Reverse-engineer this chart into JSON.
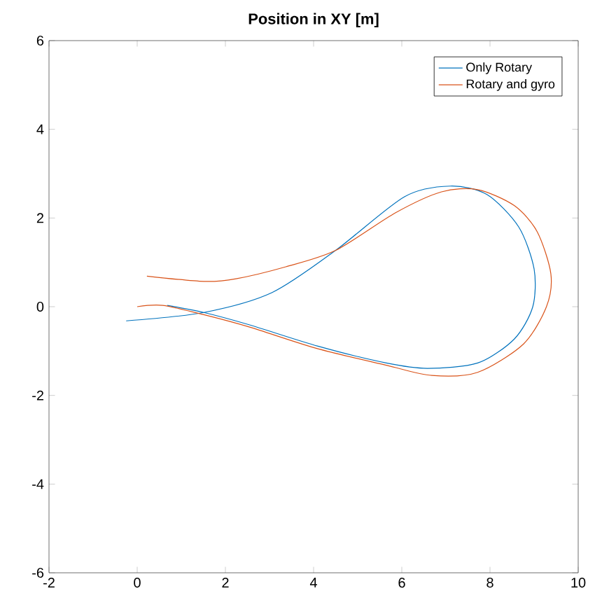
{
  "chart_data": {
    "type": "line",
    "title": "Position in XY [m]",
    "xlim": [
      -2,
      10
    ],
    "ylim": [
      -6,
      6
    ],
    "xticks": [
      -2,
      0,
      2,
      4,
      6,
      8,
      10
    ],
    "yticks": [
      -6,
      -4,
      -2,
      0,
      2,
      4,
      6
    ],
    "grid": false,
    "legend": "top right",
    "marker": "none",
    "line_style": "solid",
    "series": [
      {
        "name": "Only Rotary",
        "color": "#0072bd",
        "x": [
          -0.25,
          1.51,
          3.06,
          4.5,
          6.06,
          7.1,
          7.93,
          8.65,
          9.0,
          8.97,
          8.55,
          7.72,
          6.58,
          5.65,
          4.1,
          2.55,
          1.51,
          0.68
        ],
        "values": [
          -0.32,
          -0.13,
          0.32,
          1.27,
          2.48,
          2.72,
          2.53,
          1.8,
          0.85,
          0.0,
          -0.73,
          -1.27,
          -1.39,
          -1.27,
          -0.89,
          -0.41,
          -0.13,
          0.03
        ]
      },
      {
        "name": "Rotary and gyro",
        "color": "#d95319",
        "x": [
          0.0,
          0.58,
          1.51,
          2.55,
          4.1,
          5.65,
          6.68,
          7.72,
          8.76,
          9.28,
          9.38,
          9.07,
          8.55,
          7.72,
          6.9,
          5.86,
          4.5,
          3.37,
          2.24,
          1.51,
          0.22
        ],
        "values": [
          0.0,
          0.03,
          -0.18,
          -0.46,
          -0.95,
          -1.32,
          -1.55,
          -1.48,
          -0.84,
          0.0,
          0.74,
          1.69,
          2.28,
          2.64,
          2.59,
          2.12,
          1.27,
          0.9,
          0.63,
          0.57,
          0.69
        ]
      }
    ]
  }
}
